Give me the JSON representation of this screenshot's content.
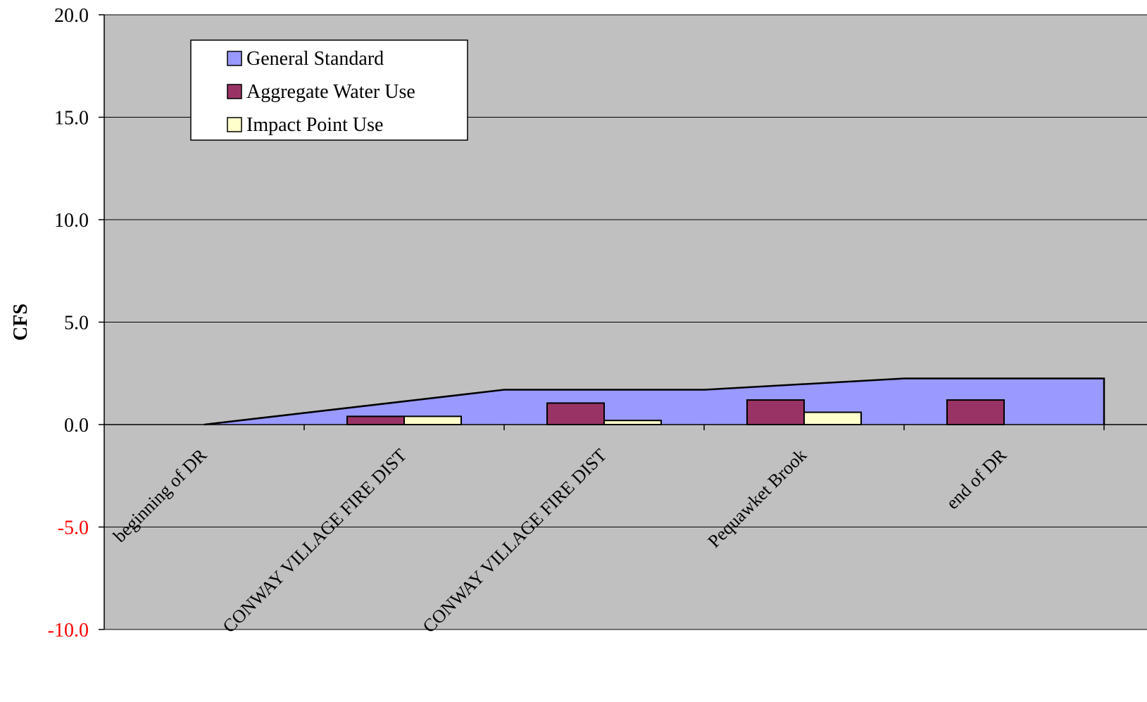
{
  "chart_data": {
    "type": "bar",
    "title": "",
    "xlabel": "",
    "ylabel": "CFS",
    "ylim": [
      -10,
      20
    ],
    "y_ticks": [
      {
        "value": 20,
        "label": "20.0",
        "color": "#000000"
      },
      {
        "value": 15,
        "label": "15.0",
        "color": "#000000"
      },
      {
        "value": 10,
        "label": "10.0",
        "color": "#000000"
      },
      {
        "value": 5,
        "label": "5.0",
        "color": "#000000"
      },
      {
        "value": 0,
        "label": "0.0",
        "color": "#000000"
      },
      {
        "value": -5,
        "label": "-5.0",
        "color": "#ff0000"
      },
      {
        "value": -10,
        "label": "-10.0",
        "color": "#ff0000"
      }
    ],
    "categories": [
      "beginning of DR",
      "CONWAY VILLAGE FIRE DIST",
      "CONWAY VILLAGE FIRE DIST",
      "Pequawket Brook",
      "end of DR"
    ],
    "grid": true,
    "plot_background": "#c0c0c0",
    "legend_position": "top-left",
    "series": [
      {
        "name": "General Standard",
        "type": "area",
        "color": "#9999ff",
        "values": [
          0.0,
          1.7,
          1.7,
          2.25,
          2.25
        ]
      },
      {
        "name": "Aggregate Water Use",
        "type": "bar",
        "color": "#993366",
        "values": [
          null,
          0.4,
          1.05,
          1.2,
          1.2
        ]
      },
      {
        "name": "Impact Point Use",
        "type": "bar",
        "color": "#ffffcc",
        "values": [
          null,
          0.4,
          0.2,
          0.6,
          null
        ]
      }
    ]
  }
}
